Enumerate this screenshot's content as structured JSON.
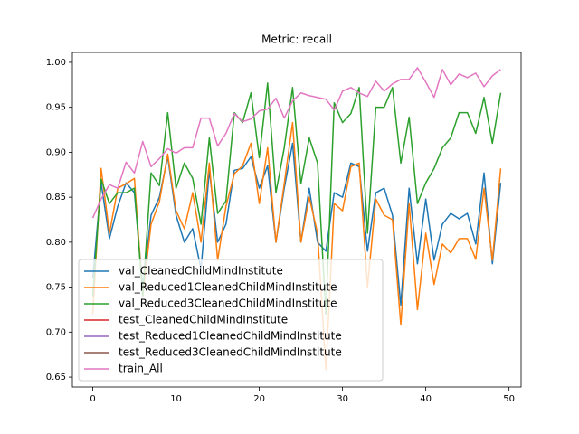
{
  "chart_data": {
    "type": "line",
    "title": "Metric: recall",
    "x": [
      0,
      1,
      2,
      3,
      4,
      5,
      6,
      7,
      8,
      9,
      10,
      11,
      12,
      13,
      14,
      15,
      16,
      17,
      18,
      19,
      20,
      21,
      22,
      23,
      24,
      25,
      26,
      27,
      28,
      29,
      30,
      31,
      32,
      33,
      34,
      35,
      36,
      37,
      38,
      39,
      40,
      41,
      42,
      43,
      44,
      45,
      46,
      47,
      48,
      49
    ],
    "xlim": [
      -2.45,
      51.45
    ],
    "xticks": [
      0,
      10,
      20,
      30,
      40,
      50
    ],
    "ylim": [
      0.639,
      1.011
    ],
    "yticks": [
      0.65,
      {
        "value": 0.7,
        "label": "0.70"
      },
      0.75,
      {
        "value": 0.8,
        "label": "0.80"
      },
      0.85,
      {
        "value": 0.9,
        "label": "0.90"
      },
      0.95,
      {
        "value": 1.0,
        "label": "1.00"
      }
    ],
    "legend": "lower left",
    "series": [
      {
        "name": "val_CleanedChildMindInstitute",
        "color": "#1f77b4",
        "values": [
          0.76,
          0.866,
          0.804,
          0.84,
          0.866,
          0.855,
          0.75,
          0.83,
          0.85,
          0.895,
          0.83,
          0.8,
          0.815,
          0.77,
          0.88,
          0.8,
          0.82,
          0.88,
          0.882,
          0.895,
          0.86,
          0.885,
          0.8,
          0.86,
          0.91,
          0.8,
          0.86,
          0.8,
          0.79,
          0.855,
          0.85,
          0.888,
          0.884,
          0.79,
          0.855,
          0.86,
          0.83,
          0.73,
          0.86,
          0.776,
          0.848,
          0.78,
          0.82,
          0.832,
          0.826,
          0.832,
          0.798,
          0.877,
          0.776,
          0.866
        ]
      },
      {
        "name": "val_Reduced1CleanedChildMindInstitute",
        "color": "#ff7f0e",
        "values": [
          0.72,
          0.882,
          0.81,
          0.86,
          0.865,
          0.871,
          0.74,
          0.82,
          0.845,
          0.898,
          0.835,
          0.815,
          0.855,
          0.8,
          0.888,
          0.78,
          0.84,
          0.876,
          0.885,
          0.91,
          0.843,
          0.905,
          0.8,
          0.865,
          0.933,
          0.8,
          0.85,
          0.81,
          0.658,
          0.843,
          0.835,
          0.884,
          0.888,
          0.75,
          0.848,
          0.83,
          0.825,
          0.708,
          0.843,
          0.725,
          0.81,
          0.753,
          0.798,
          0.788,
          0.804,
          0.804,
          0.781,
          0.86,
          0.78,
          0.882
        ]
      },
      {
        "name": "val_Reduced3CleanedChildMindInstitute",
        "color": "#2ca02c",
        "values": [
          0.74,
          0.87,
          0.843,
          0.855,
          0.855,
          0.86,
          0.74,
          0.877,
          0.863,
          0.944,
          0.86,
          0.888,
          0.871,
          0.82,
          0.916,
          0.832,
          0.846,
          0.944,
          0.933,
          0.966,
          0.894,
          0.977,
          0.855,
          0.905,
          0.972,
          0.865,
          0.916,
          0.888,
          0.72,
          0.955,
          0.933,
          0.943,
          0.972,
          0.81,
          0.95,
          0.95,
          0.972,
          0.888,
          0.939,
          0.843,
          0.866,
          0.882,
          0.905,
          0.916,
          0.944,
          0.944,
          0.921,
          0.961,
          0.91,
          0.966
        ]
      },
      {
        "name": "test_CleanedChildMindInstitute",
        "color": "#d62728",
        "values": [
          null,
          null,
          null,
          null,
          null,
          null,
          null,
          null,
          null,
          null,
          null,
          null,
          null,
          null,
          null,
          null,
          null,
          null,
          null,
          null,
          null,
          null,
          null,
          null,
          null,
          null,
          null,
          null,
          null,
          null,
          null,
          null,
          null,
          null,
          null,
          null,
          null,
          null,
          null,
          null,
          null,
          null,
          null,
          null,
          null,
          null,
          null,
          null,
          null,
          null
        ]
      },
      {
        "name": "test_Reduced1CleanedChildMindInstitute",
        "color": "#9467bd",
        "values": [
          null,
          null,
          null,
          null,
          null,
          null,
          null,
          null,
          null,
          null,
          null,
          null,
          null,
          null,
          null,
          null,
          null,
          null,
          null,
          null,
          null,
          null,
          null,
          null,
          null,
          null,
          null,
          null,
          null,
          null,
          null,
          null,
          null,
          null,
          null,
          null,
          null,
          null,
          null,
          null,
          null,
          null,
          null,
          null,
          null,
          null,
          null,
          null,
          null,
          null
        ]
      },
      {
        "name": "test_Reduced3CleanedChildMindInstitute",
        "color": "#8c564b",
        "values": [
          null,
          null,
          null,
          null,
          null,
          null,
          null,
          null,
          null,
          null,
          null,
          null,
          null,
          null,
          null,
          null,
          null,
          null,
          null,
          null,
          null,
          null,
          null,
          null,
          null,
          null,
          null,
          null,
          null,
          null,
          null,
          null,
          null,
          null,
          null,
          null,
          null,
          null,
          null,
          null,
          null,
          null,
          null,
          null,
          null,
          null,
          null,
          null,
          null,
          null
        ]
      },
      {
        "name": "train_All",
        "color": "#e377c2",
        "values": [
          0.827,
          0.848,
          0.864,
          0.86,
          0.889,
          0.877,
          0.912,
          0.884,
          0.893,
          0.904,
          0.899,
          0.905,
          0.905,
          0.938,
          0.938,
          0.907,
          0.921,
          0.943,
          0.934,
          0.937,
          0.946,
          0.948,
          0.96,
          0.938,
          0.957,
          0.966,
          0.963,
          0.961,
          0.959,
          0.947,
          0.968,
          0.972,
          0.966,
          0.962,
          0.979,
          0.968,
          0.976,
          0.981,
          0.981,
          0.994,
          0.978,
          0.961,
          0.992,
          0.975,
          0.987,
          0.983,
          0.988,
          0.973,
          0.985,
          0.992
        ]
      }
    ]
  }
}
